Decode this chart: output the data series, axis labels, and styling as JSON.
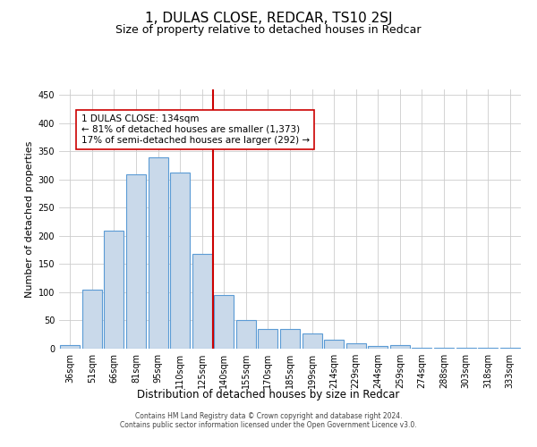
{
  "title": "1, DULAS CLOSE, REDCAR, TS10 2SJ",
  "subtitle": "Size of property relative to detached houses in Redcar",
  "xlabel": "Distribution of detached houses by size in Redcar",
  "ylabel": "Number of detached properties",
  "categories": [
    "36sqm",
    "51sqm",
    "66sqm",
    "81sqm",
    "95sqm",
    "110sqm",
    "125sqm",
    "140sqm",
    "155sqm",
    "170sqm",
    "185sqm",
    "199sqm",
    "214sqm",
    "229sqm",
    "244sqm",
    "259sqm",
    "274sqm",
    "288sqm",
    "303sqm",
    "318sqm",
    "333sqm"
  ],
  "values": [
    6,
    105,
    210,
    310,
    340,
    313,
    168,
    95,
    50,
    35,
    35,
    27,
    16,
    9,
    4,
    6,
    2,
    1,
    1,
    1,
    1
  ],
  "bar_color": "#c9d9ea",
  "bar_edge_color": "#5b9bd5",
  "vline_x_index": 7,
  "vline_color": "#cc0000",
  "annotation_text": "1 DULAS CLOSE: 134sqm\n← 81% of detached houses are smaller (1,373)\n17% of semi-detached houses are larger (292) →",
  "annotation_box_color": "#ffffff",
  "annotation_box_edge_color": "#cc0000",
  "ylim": [
    0,
    460
  ],
  "yticks": [
    0,
    50,
    100,
    150,
    200,
    250,
    300,
    350,
    400,
    450
  ],
  "background_color": "#ffffff",
  "grid_color": "#cccccc",
  "footer_line1": "Contains HM Land Registry data © Crown copyright and database right 2024.",
  "footer_line2": "Contains public sector information licensed under the Open Government Licence v3.0.",
  "title_fontsize": 11,
  "subtitle_fontsize": 9,
  "tick_fontsize": 7,
  "ylabel_fontsize": 8,
  "xlabel_fontsize": 8.5,
  "annotation_fontsize": 7.5,
  "footer_fontsize": 5.5
}
